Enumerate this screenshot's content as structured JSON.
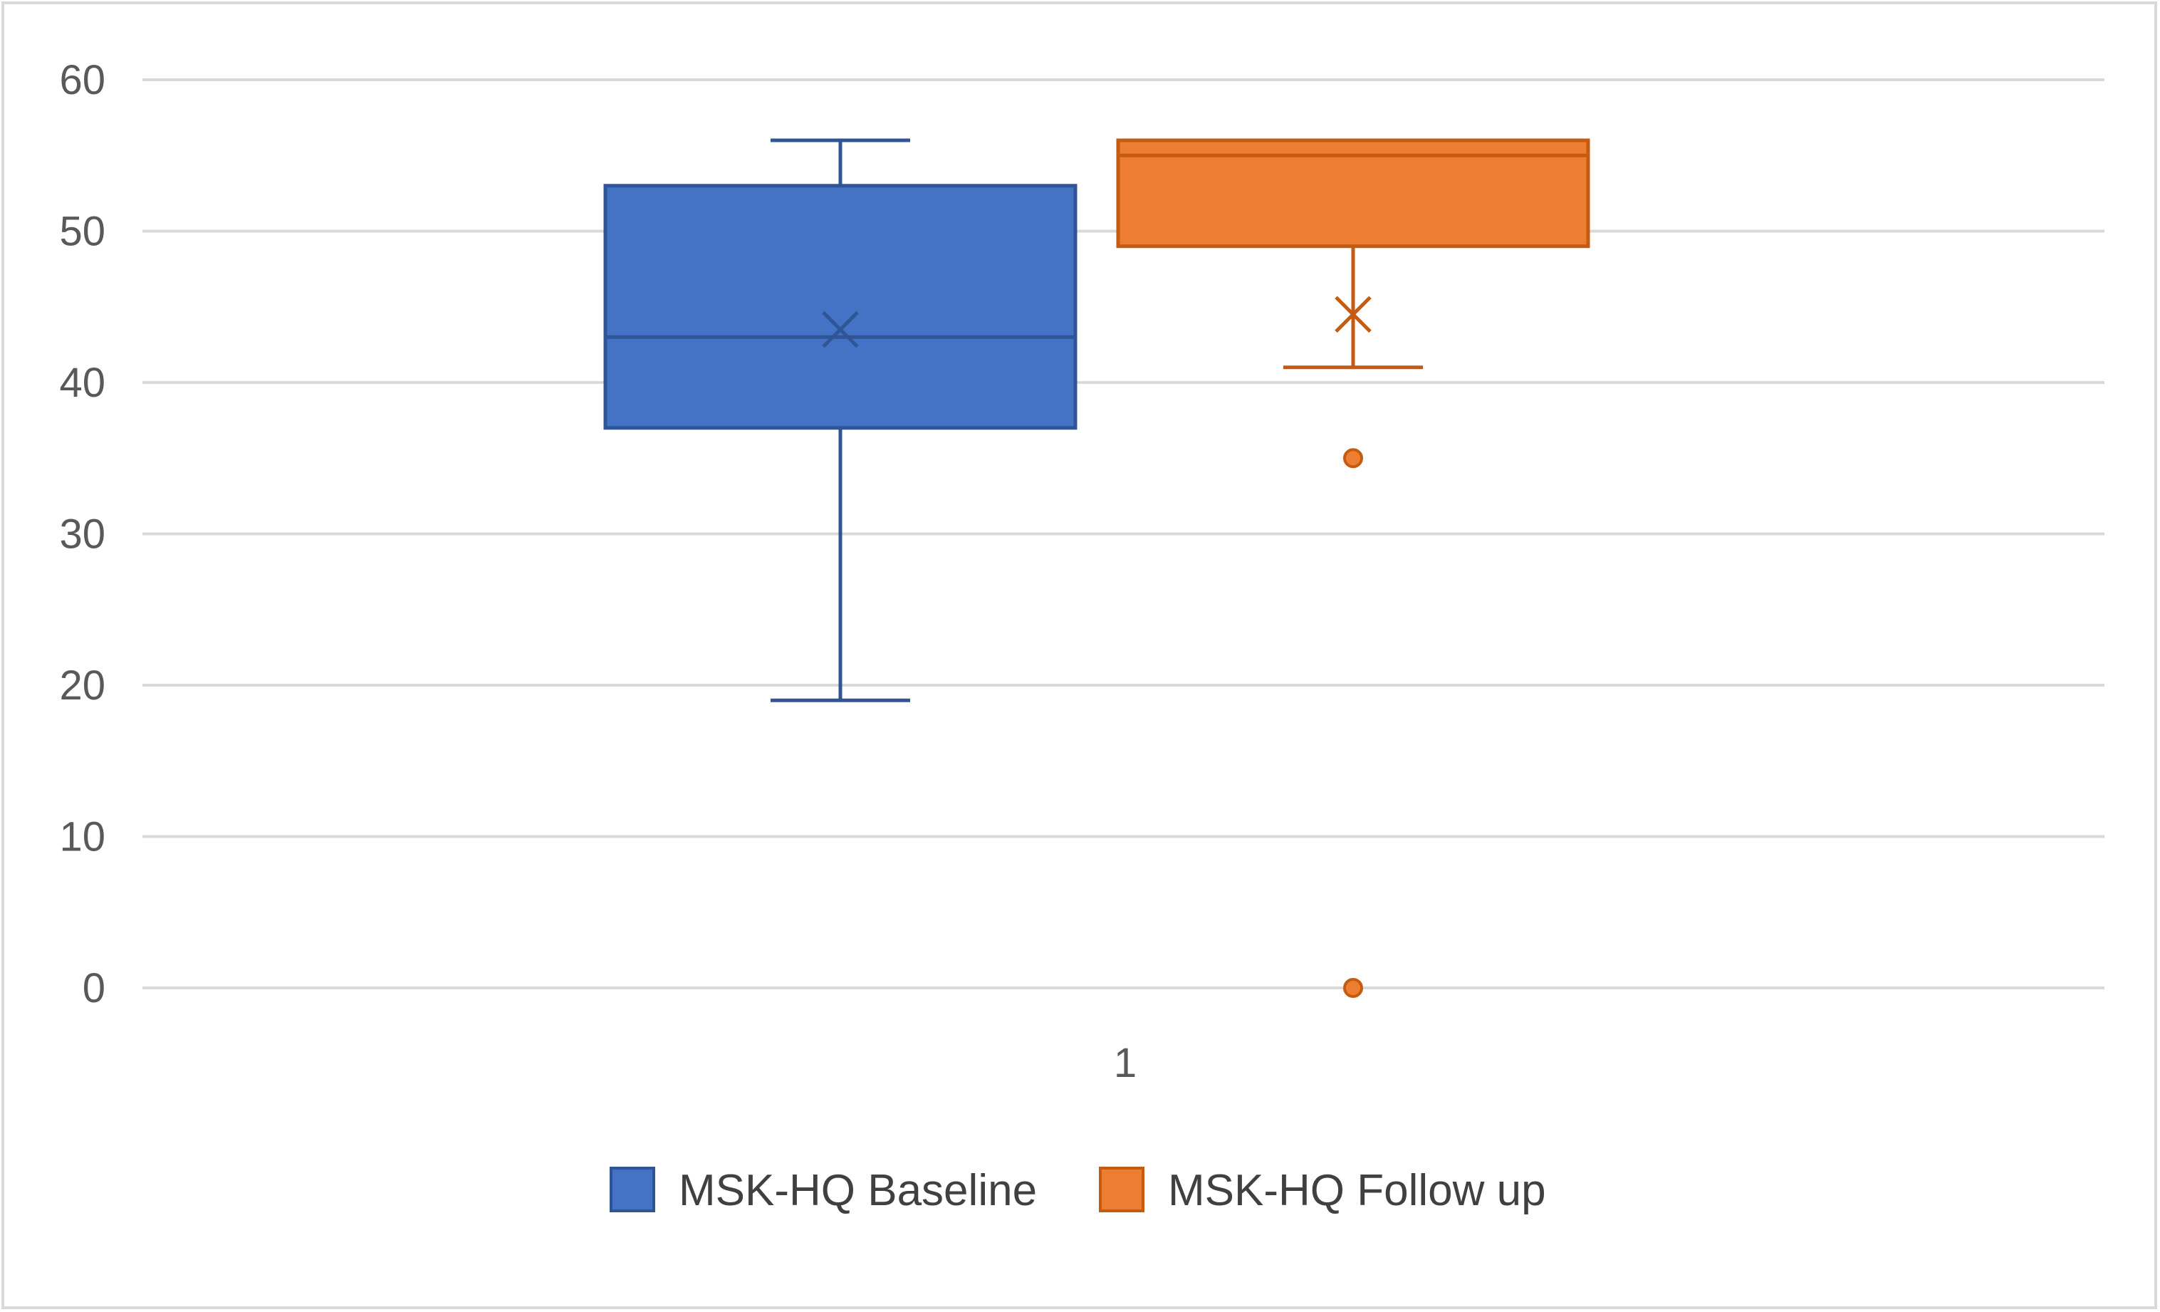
{
  "chart_data": {
    "type": "box",
    "categories": [
      "1"
    ],
    "ylim": [
      0,
      60
    ],
    "yticks": [
      0,
      10,
      20,
      30,
      40,
      50,
      60
    ],
    "grid": true,
    "legend_position": "bottom",
    "series": [
      {
        "name": "MSK-HQ Baseline",
        "color": "#4472c4",
        "edge_color": "#2f5597",
        "whisker_low": 19,
        "q1": 37,
        "median": 43,
        "q3": 53,
        "whisker_high": 56,
        "mean": 43.5,
        "outliers": []
      },
      {
        "name": "MSK-HQ Follow up",
        "color": "#ed7d31",
        "edge_color": "#c55a11",
        "whisker_low": 41,
        "q1": 49,
        "median": 55,
        "q3": 56,
        "whisker_high": 56,
        "mean": 44.5,
        "outliers": [
          35,
          0
        ]
      }
    ]
  }
}
